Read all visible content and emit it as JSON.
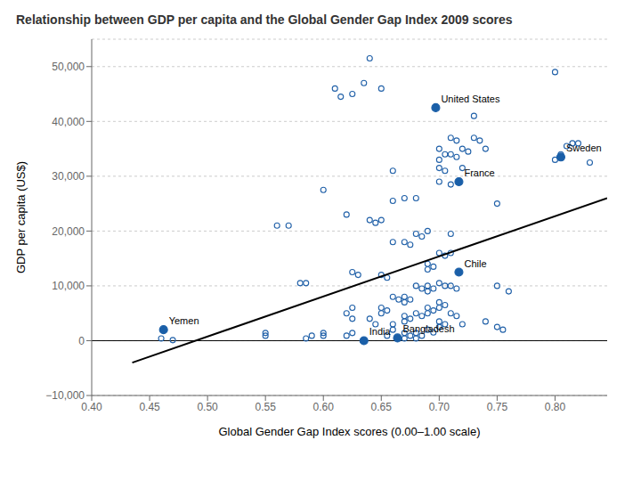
{
  "chart_data": {
    "type": "scatter",
    "title": "Relationship between GDP per capita and the Global Gender Gap Index 2009 scores",
    "xlabel": "Global Gender Gap Index scores (0.00–1.00 scale)",
    "ylabel": "GDP per capita (US$)",
    "xlim": [
      0.4,
      0.845
    ],
    "ylim": [
      -10000,
      55000
    ],
    "xticks": [
      {
        "value": 0.4,
        "label": "0.40"
      },
      0.45,
      {
        "value": 0.5,
        "label": "0.50"
      },
      0.55,
      {
        "value": 0.6,
        "label": "0.60"
      },
      0.65,
      {
        "value": 0.7,
        "label": "0.70"
      },
      0.75,
      {
        "value": 0.8,
        "label": "0.80"
      }
    ],
    "yticks": [
      {
        "value": -10000,
        "label": "−10,000"
      },
      0,
      {
        "value": 10000,
        "label": "10,000"
      },
      {
        "value": 20000,
        "label": "20,000"
      },
      {
        "value": 30000,
        "label": "30,000"
      },
      {
        "value": 40000,
        "label": "40,000"
      },
      {
        "value": 50000,
        "label": "50,000"
      }
    ],
    "grid": true,
    "hline": 0,
    "series": [
      {
        "type": "scatter",
        "marker": "hollow",
        "color": "#2060a8",
        "x": [
          0.46,
          0.47,
          0.55,
          0.55,
          0.56,
          0.57,
          0.58,
          0.585,
          0.59,
          0.585,
          0.6,
          0.6,
          0.6,
          0.61,
          0.615,
          0.62,
          0.62,
          0.62,
          0.625,
          0.635,
          0.625,
          0.63,
          0.625,
          0.625,
          0.625,
          0.64,
          0.64,
          0.645,
          0.64,
          0.645,
          0.65,
          0.65,
          0.65,
          0.655,
          0.65,
          0.655,
          0.65,
          0.655,
          0.66,
          0.66,
          0.66,
          0.66,
          0.665,
          0.66,
          0.66,
          0.67,
          0.67,
          0.675,
          0.67,
          0.675,
          0.67,
          0.67,
          0.675,
          0.67,
          0.67,
          0.675,
          0.67,
          0.68,
          0.68,
          0.685,
          0.68,
          0.685,
          0.68,
          0.685,
          0.68,
          0.685,
          0.68,
          0.69,
          0.69,
          0.695,
          0.69,
          0.69,
          0.695,
          0.69,
          0.69,
          0.695,
          0.69,
          0.69,
          0.695,
          0.7,
          0.705,
          0.7,
          0.7,
          0.705,
          0.7,
          0.7,
          0.705,
          0.7,
          0.705,
          0.7,
          0.705,
          0.7,
          0.7,
          0.705,
          0.7,
          0.71,
          0.715,
          0.71,
          0.715,
          0.71,
          0.71,
          0.71,
          0.71,
          0.715,
          0.71,
          0.715,
          0.72,
          0.725,
          0.72,
          0.72,
          0.73,
          0.73,
          0.735,
          0.74,
          0.74,
          0.75,
          0.75,
          0.75,
          0.755,
          0.76,
          0.8,
          0.805,
          0.8,
          0.815,
          0.81,
          0.82,
          0.83
        ],
        "values": [
          400,
          100,
          900,
          1400,
          21000,
          21000,
          10500,
          10500,
          900,
          400,
          27500,
          1400,
          900,
          46000,
          44500,
          23000,
          5000,
          900,
          45000,
          47000,
          12500,
          12000,
          6000,
          4000,
          1400,
          51500,
          22000,
          21500,
          4000,
          3000,
          46000,
          22000,
          12000,
          11500,
          6000,
          5500,
          5000,
          900,
          31000,
          25500,
          18000,
          8000,
          7500,
          3000,
          2000,
          26000,
          18000,
          17500,
          8000,
          7500,
          7000,
          4500,
          4000,
          3500,
          1400,
          900,
          400,
          26000,
          19500,
          19000,
          10000,
          9500,
          5000,
          4500,
          1400,
          900,
          400,
          20000,
          14000,
          13500,
          13000,
          10000,
          9500,
          9000,
          6000,
          5500,
          5000,
          2000,
          1500,
          35000,
          34000,
          33000,
          31500,
          31000,
          29000,
          16000,
          15500,
          10500,
          10000,
          7000,
          6500,
          6000,
          3500,
          3000,
          2500,
          37000,
          36500,
          34000,
          33500,
          28500,
          19500,
          16000,
          10000,
          9500,
          5000,
          4500,
          35000,
          34500,
          31500,
          3000,
          41000,
          37000,
          36500,
          35000,
          3500,
          25000,
          10000,
          2500,
          2000,
          9000,
          49000,
          34000,
          33000,
          36000,
          35500,
          36000,
          32500
        ]
      },
      {
        "type": "scatter",
        "marker": "circle",
        "color": "#1a5fa8",
        "x": [
          0.462,
          0.635,
          0.664,
          0.697,
          0.717,
          0.717,
          0.805
        ],
        "values": [
          2000,
          0,
          500,
          42500,
          29000,
          12500,
          33500
        ],
        "labels": [
          "Yemen",
          "India",
          "Bangladesh",
          "United States",
          "France",
          "Chile",
          "Sweden"
        ]
      },
      {
        "type": "line",
        "color": "black",
        "x": [
          0.435,
          0.845
        ],
        "values": [
          -4000,
          26000
        ]
      }
    ]
  }
}
